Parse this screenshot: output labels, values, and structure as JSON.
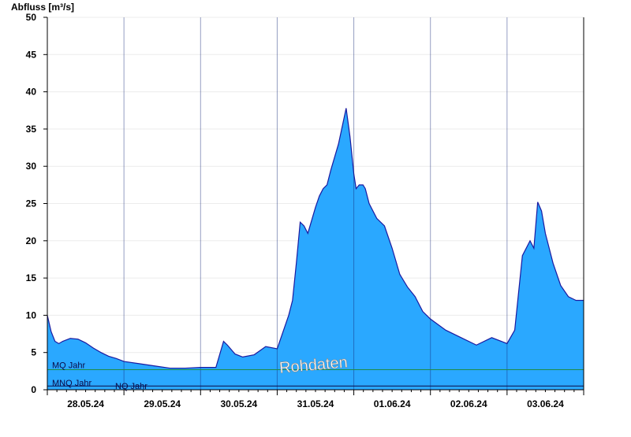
{
  "chart_data": {
    "type": "area",
    "ylabel": "Abfluss [m³/s]",
    "xlabel": "",
    "ylim": [
      0,
      50
    ],
    "yticks": [
      0,
      5,
      10,
      15,
      20,
      25,
      30,
      35,
      40,
      45,
      50
    ],
    "xlim": [
      0,
      7
    ],
    "day_labels": [
      "28.05.24",
      "29.05.24",
      "30.05.24",
      "31.05.24",
      "01.06.24",
      "02.06.24",
      "03.06.24"
    ],
    "grid": true,
    "fill_color": "#2aa8ff",
    "line_color": "#1a1aa0",
    "series": [
      {
        "x": [
          0.0,
          0.05,
          0.1,
          0.15,
          0.2,
          0.3,
          0.4,
          0.5,
          0.6,
          0.7,
          0.8,
          0.9,
          1.0,
          1.2,
          1.4,
          1.6,
          1.8,
          2.0,
          2.2,
          2.3,
          2.35,
          2.45,
          2.55,
          2.7,
          2.85,
          3.0,
          3.15,
          3.2,
          3.25,
          3.3,
          3.35,
          3.4,
          3.5,
          3.55,
          3.6,
          3.65,
          3.7,
          3.8,
          3.9,
          3.95,
          4.0,
          4.03,
          4.07,
          4.12,
          4.15,
          4.2,
          4.3,
          4.4,
          4.5,
          4.6,
          4.7,
          4.8,
          4.9,
          5.0,
          5.2,
          5.4,
          5.6,
          5.8,
          6.0,
          6.1,
          6.2,
          6.3,
          6.35,
          6.4,
          6.45,
          6.5,
          6.55,
          6.6,
          6.7,
          6.8,
          6.9,
          7.0
        ],
        "y": [
          10.0,
          7.8,
          6.5,
          6.2,
          6.5,
          6.9,
          6.8,
          6.3,
          5.6,
          5.0,
          4.5,
          4.2,
          3.8,
          3.5,
          3.2,
          2.9,
          2.9,
          3.0,
          3.0,
          6.5,
          6.0,
          4.8,
          4.4,
          4.7,
          5.8,
          5.5,
          10.0,
          12.0,
          17.0,
          22.5,
          22.0,
          21.0,
          24.5,
          26.0,
          27.0,
          27.5,
          29.5,
          33.0,
          37.8,
          34.0,
          29.0,
          27.0,
          27.5,
          27.5,
          27.0,
          25.0,
          23.0,
          22.0,
          19.0,
          15.5,
          13.8,
          12.5,
          10.5,
          9.5,
          8.0,
          7.0,
          6.0,
          7.0,
          6.2,
          8.0,
          18.0,
          20.0,
          19.0,
          25.2,
          24.0,
          21.0,
          19.0,
          17.0,
          14.0,
          12.5,
          12.0,
          12.0
        ]
      }
    ],
    "reference_lines": [
      {
        "label": "MQ Jahr",
        "value": 2.7,
        "color": "#1e8c46"
      },
      {
        "label": "MNQ Jahr",
        "value": 0.5,
        "color": "#0a0a46"
      },
      {
        "label": "NQ Jahr",
        "value": 0.5,
        "color": "#0a0a46"
      }
    ],
    "annotation": "Rohdaten"
  }
}
